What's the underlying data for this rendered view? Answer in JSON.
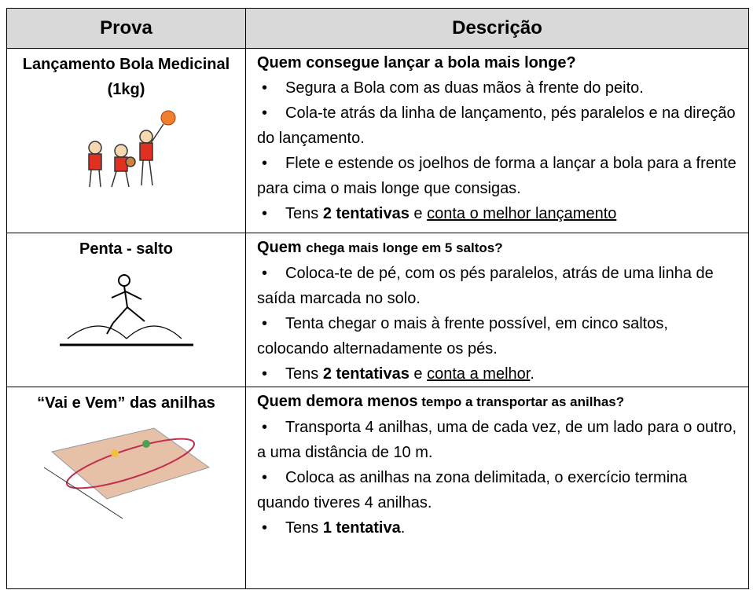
{
  "header": [
    "Prova",
    "Descrição"
  ],
  "rows": [
    {
      "prova": "Lançamento Bola Medicinal (1kg)",
      "heading": [
        {
          "text": "Quem consegue lançar a bola mais longe?",
          "style": "bold"
        }
      ],
      "bullets": [
        [
          {
            "text": "Segura a Bola com as duas mãos à frente do peito.",
            "style": "normal"
          }
        ],
        [
          {
            "text": "Cola-te atrás da linha de lançamento, pés paralelos e na direção do lançamento.",
            "style": "normal"
          }
        ],
        [
          {
            "text": "Flete e estende os joelhos de forma a lançar a bola para a frente para cima o mais longe que consigas.",
            "style": "normal"
          }
        ],
        [
          {
            "text": "Tens ",
            "style": "normal"
          },
          {
            "text": "2 tentativas",
            "style": "bold"
          },
          {
            "text": " e ",
            "style": "normal"
          },
          {
            "text": "conta o melhor lançamento",
            "style": "underline"
          }
        ]
      ]
    },
    {
      "prova": "Penta - salto",
      "heading": [
        {
          "text": "Quem ",
          "style": "bold"
        },
        {
          "text": "chega mais longe em 5 saltos?",
          "style": "bold-small"
        }
      ],
      "bullets": [
        [
          {
            "text": "Coloca-te de pé, com os pés paralelos, atrás de uma linha de saída marcada no solo.",
            "style": "normal"
          }
        ],
        [
          {
            "text": "Tenta chegar o mais à frente possível, em cinco saltos, colocando alternadamente os pés.",
            "style": "normal"
          }
        ],
        [
          {
            "text": "Tens ",
            "style": "normal"
          },
          {
            "text": "2 tentativas",
            "style": "bold"
          },
          {
            "text": " e ",
            "style": "normal"
          },
          {
            "text": "conta a melhor",
            "style": "underline"
          },
          {
            "text": ".",
            "style": "normal"
          }
        ]
      ]
    },
    {
      "prova": "“Vai e Vem” das anilhas",
      "heading": [
        {
          "text": "Quem demora menos",
          "style": "bold"
        },
        {
          "text": " tempo a transportar as anilhas?",
          "style": "bold-small"
        }
      ],
      "bullets": [
        [
          {
            "text": "Transporta 4 anilhas, uma de cada vez, de um lado para o outro, a uma distância de 10 m.",
            "style": "normal"
          }
        ],
        [
          {
            "text": "Coloca as anilhas na zona delimitada, o exercício termina quando tiveres 4 anilhas.",
            "style": "normal"
          }
        ],
        [
          {
            "text": "Tens ",
            "style": "normal"
          },
          {
            "text": "1 tentativa",
            "style": "bold"
          },
          {
            "text": ".",
            "style": "normal"
          }
        ]
      ]
    }
  ]
}
